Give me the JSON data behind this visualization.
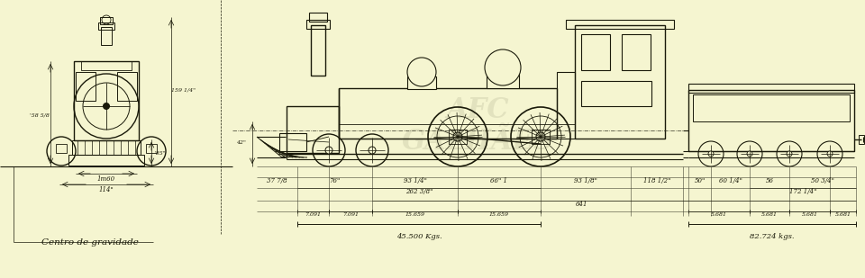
{
  "bg": "#f5f5d0",
  "lc": "#1a1a0a",
  "fig_w": 9.6,
  "fig_h": 3.09,
  "dpi": 100,
  "gravity_label": "Centro de gravidade",
  "watermark1": "AFC",
  "watermark2": "GALHÃES",
  "weight_loco": "45.500 Kgs.",
  "weight_tender": "82.724 kgs.",
  "dim_row1": [
    "37 7/8",
    "76\"",
    "93 1/4\"",
    "66\" 1",
    "93 1/8\"",
    "118 1/2\"",
    "50\"",
    "60 1/4\"",
    "56",
    "50 3/4\""
  ],
  "dim_row2": [
    "262 3/8\"",
    "641",
    "172 1/4\""
  ],
  "dim_row3": [
    "7.091",
    "7.091",
    "15.659",
    "15.659",
    "5.681",
    "5.681",
    "5.681",
    "5.681"
  ]
}
